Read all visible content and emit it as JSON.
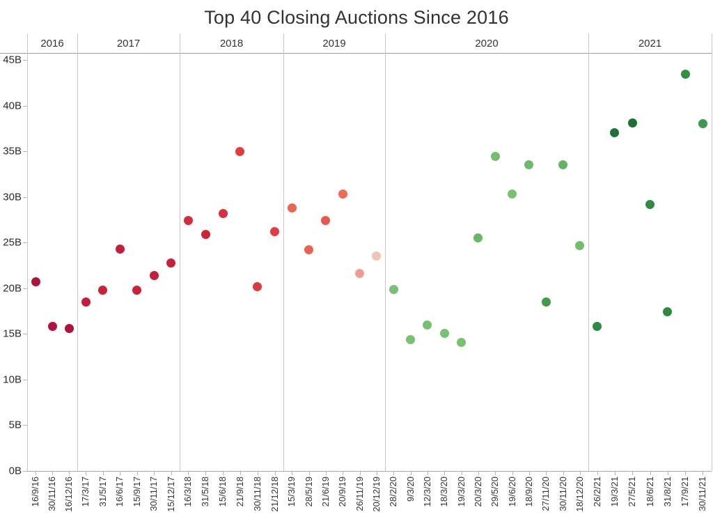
{
  "title": "Top 40 Closing Auctions Since 2016",
  "chart_data": {
    "type": "scatter",
    "title": "Top 40 Closing Auctions Since 2016",
    "x_axis": {
      "level_1": "year",
      "level_2": "date",
      "label_style": "rotated-vertical"
    },
    "y_axis": {
      "min": 0,
      "max": 45,
      "tick_step": 5,
      "unit": "billions",
      "tick_labels": [
        "0B",
        "5B",
        "10B",
        "15B",
        "20B",
        "25B",
        "30B",
        "35B",
        "40B",
        "45B"
      ]
    },
    "legend": "none",
    "grid": "vertical pane dividers only",
    "groups": [
      {
        "year": "2016",
        "points": [
          {
            "date": "16/9/16",
            "value_b": 20.7,
            "color": "#b01338"
          },
          {
            "date": "30/11/16",
            "value_b": 15.8,
            "color": "#b51239"
          },
          {
            "date": "16/12/16",
            "value_b": 15.6,
            "color": "#b01338"
          }
        ]
      },
      {
        "year": "2017",
        "points": [
          {
            "date": "17/3/17",
            "value_b": 18.5,
            "color": "#c41e39"
          },
          {
            "date": "31/5/17",
            "value_b": 19.8,
            "color": "#ca2137"
          },
          {
            "date": "16/6/17",
            "value_b": 24.3,
            "color": "#c51e38"
          },
          {
            "date": "15/9/17",
            "value_b": 19.8,
            "color": "#c92138"
          },
          {
            "date": "30/11/17",
            "value_b": 21.4,
            "color": "#c41f3b"
          },
          {
            "date": "15/12/17",
            "value_b": 22.8,
            "color": "#c62139"
          }
        ]
      },
      {
        "year": "2018",
        "points": [
          {
            "date": "16/3/18",
            "value_b": 27.4,
            "color": "#d22e3a"
          },
          {
            "date": "31/5/18",
            "value_b": 25.9,
            "color": "#cb2533"
          },
          {
            "date": "15/6/18",
            "value_b": 28.2,
            "color": "#d5313a"
          },
          {
            "date": "21/9/18",
            "value_b": 35.0,
            "color": "#e23d3c"
          },
          {
            "date": "30/11/18",
            "value_b": 20.2,
            "color": "#dd3a3d"
          },
          {
            "date": "21/12/18",
            "value_b": 26.2,
            "color": "#e03c41"
          }
        ]
      },
      {
        "year": "2019",
        "points": [
          {
            "date": "15/3/19",
            "value_b": 28.8,
            "color": "#ef6150"
          },
          {
            "date": "28/5/19",
            "value_b": 24.2,
            "color": "#ee6150"
          },
          {
            "date": "21/6/19",
            "value_b": 27.4,
            "color": "#ea584d"
          },
          {
            "date": "20/9/19",
            "value_b": 30.3,
            "color": "#f06a55"
          },
          {
            "date": "26/11/19",
            "value_b": 21.6,
            "color": "#f29d92"
          },
          {
            "date": "20/12/19",
            "value_b": 23.5,
            "color": "#eec4b4"
          }
        ]
      },
      {
        "year": "2020",
        "points": [
          {
            "date": "28/2/20",
            "value_b": 19.9,
            "color": "#79c172"
          },
          {
            "date": "9/3/20",
            "value_b": 14.4,
            "color": "#7ac173"
          },
          {
            "date": "12/3/20",
            "value_b": 16.0,
            "color": "#77c070"
          },
          {
            "date": "18/3/20",
            "value_b": 15.1,
            "color": "#79c172"
          },
          {
            "date": "19/3/20",
            "value_b": 14.1,
            "color": "#78c171"
          },
          {
            "date": "20/3/20",
            "value_b": 25.5,
            "color": "#68b763"
          },
          {
            "date": "29/5/20",
            "value_b": 34.4,
            "color": "#74bf6f"
          },
          {
            "date": "19/6/20",
            "value_b": 30.3,
            "color": "#77c171"
          },
          {
            "date": "18/9/20",
            "value_b": 33.5,
            "color": "#6fb96a"
          },
          {
            "date": "27/11/20",
            "value_b": 18.5,
            "color": "#419a4a"
          },
          {
            "date": "30/11/20",
            "value_b": 33.5,
            "color": "#65b363"
          },
          {
            "date": "18/12/20",
            "value_b": 24.7,
            "color": "#72bd6e"
          }
        ]
      },
      {
        "year": "2021",
        "points": [
          {
            "date": "26/2/21",
            "value_b": 15.8,
            "color": "#2e8b42"
          },
          {
            "date": "19/3/21",
            "value_b": 37.0,
            "color": "#20703a"
          },
          {
            "date": "27/5/21",
            "value_b": 38.1,
            "color": "#1d6f33"
          },
          {
            "date": "18/6/21",
            "value_b": 29.2,
            "color": "#2f8b43"
          },
          {
            "date": "31/8/21",
            "value_b": 17.4,
            "color": "#2c8940"
          },
          {
            "date": "17/9/21",
            "value_b": 43.4,
            "color": "#2f8f45"
          },
          {
            "date": "30/11/21",
            "value_b": 38.0,
            "color": "#3b9a4e"
          }
        ]
      }
    ]
  }
}
